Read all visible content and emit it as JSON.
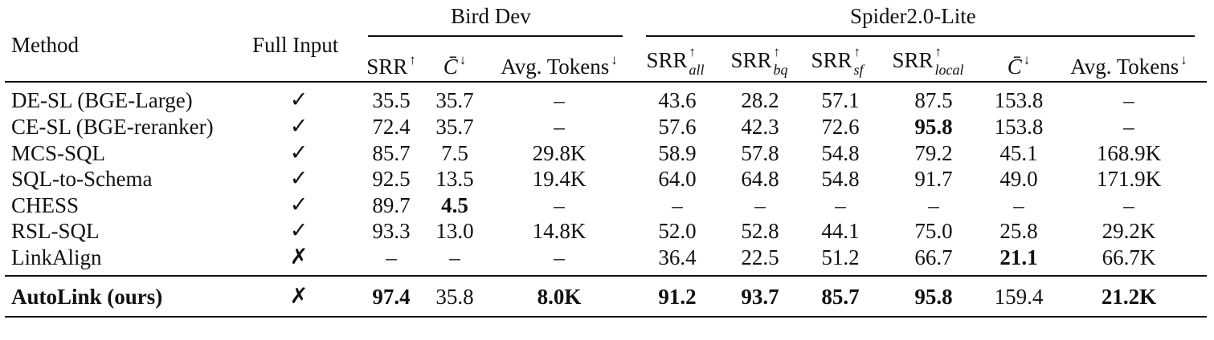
{
  "groups": {
    "bird": "Bird Dev",
    "spider": "Spider2.0-Lite"
  },
  "headers": {
    "method": "Method",
    "full_input": "Full Input",
    "srr": "SRR",
    "c": "C̄",
    "avg_tokens": "Avg. Tokens",
    "up": "↑",
    "down": "↓",
    "sub_all": "all",
    "sub_bq": "bq",
    "sub_sf": "sf",
    "sub_local": "local"
  },
  "rows": [
    {
      "method": "DE-SL (BGE-Large)",
      "full": "✓",
      "v": [
        "35.5",
        "35.7",
        "–",
        "43.6",
        "28.2",
        "57.1",
        "87.5",
        "153.8",
        "–"
      ],
      "bold": []
    },
    {
      "method": "CE-SL (BGE-reranker)",
      "full": "✓",
      "v": [
        "72.4",
        "35.7",
        "–",
        "57.6",
        "42.3",
        "72.6",
        "95.8",
        "153.8",
        "–"
      ],
      "bold": [
        6
      ]
    },
    {
      "method": "MCS-SQL",
      "full": "✓",
      "v": [
        "85.7",
        "7.5",
        "29.8K",
        "58.9",
        "57.8",
        "54.8",
        "79.2",
        "45.1",
        "168.9K"
      ],
      "bold": []
    },
    {
      "method": "SQL-to-Schema",
      "full": "✓",
      "v": [
        "92.5",
        "13.5",
        "19.4K",
        "64.0",
        "64.8",
        "54.8",
        "91.7",
        "49.0",
        "171.9K"
      ],
      "bold": []
    },
    {
      "method": "CHESS",
      "full": "✓",
      "v": [
        "89.7",
        "4.5",
        "–",
        "–",
        "–",
        "–",
        "–",
        "–",
        "–"
      ],
      "bold": [
        1
      ]
    },
    {
      "method": "RSL-SQL",
      "full": "✓",
      "v": [
        "93.3",
        "13.0",
        "14.8K",
        "52.0",
        "52.8",
        "44.1",
        "75.0",
        "25.8",
        "29.2K"
      ],
      "bold": []
    },
    {
      "method": "LinkAlign",
      "full": "✗",
      "v": [
        "–",
        "–",
        "–",
        "36.4",
        "22.5",
        "51.2",
        "66.7",
        "21.1",
        "66.7K"
      ],
      "bold": [
        7
      ]
    },
    {
      "method": "AutoLink (ours)",
      "full": "✗",
      "v": [
        "97.4",
        "35.8",
        "8.0K",
        "91.2",
        "93.7",
        "85.7",
        "95.8",
        "159.4",
        "21.2K"
      ],
      "bold": [
        0,
        2,
        3,
        4,
        5,
        6,
        8
      ],
      "method_bold": true
    }
  ]
}
